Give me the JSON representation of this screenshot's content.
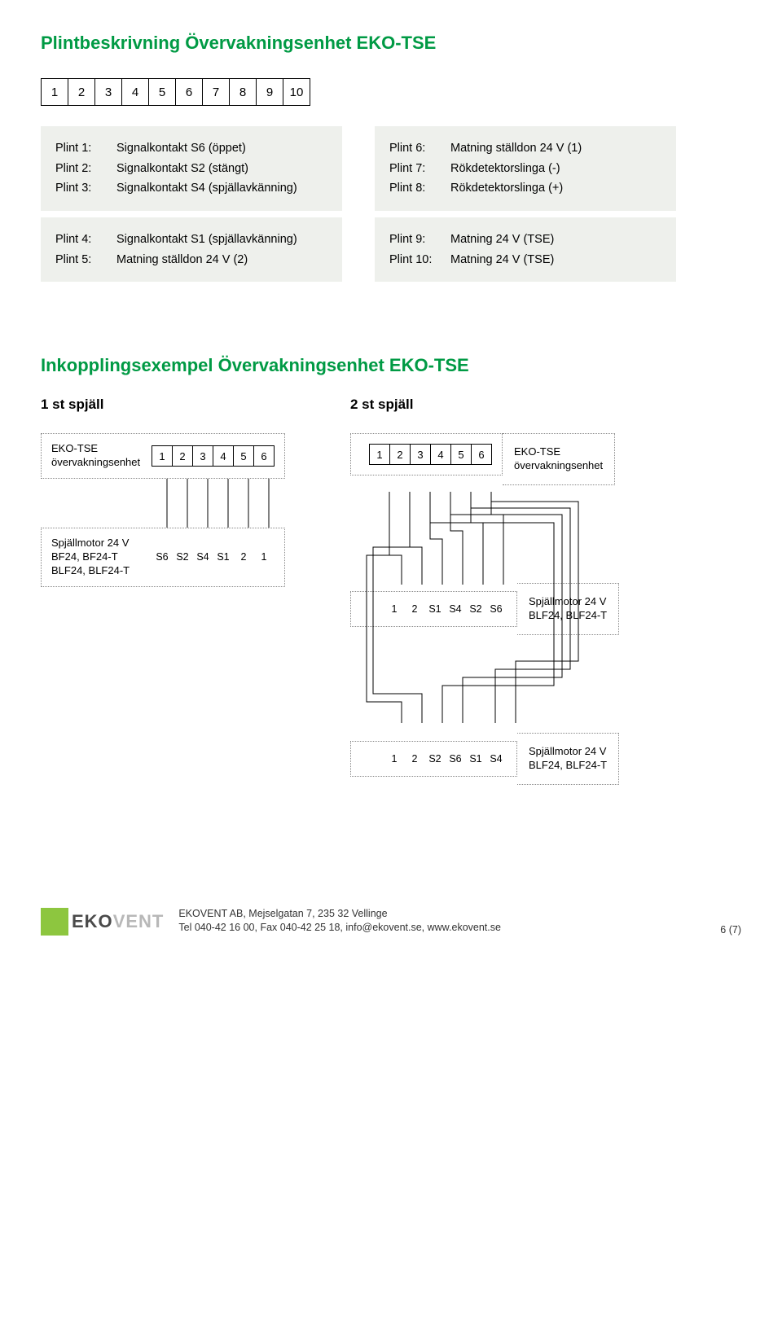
{
  "colors": {
    "accent": "#009a44",
    "box_bg": "#eef0ec",
    "logo_green": "#8dc63f",
    "logo_dark": "#4a4a4a",
    "logo_light": "#b8b8b8",
    "dotted": "#888888",
    "text": "#000000"
  },
  "heading1": "Plintbeskrivning Övervakningsenhet EKO-TSE",
  "terminal_numbers": [
    "1",
    "2",
    "3",
    "4",
    "5",
    "6",
    "7",
    "8",
    "9",
    "10"
  ],
  "plint_left_a": [
    {
      "k": "Plint 1:",
      "v": "Signalkontakt S6 (öppet)"
    },
    {
      "k": "Plint 2:",
      "v": "Signalkontakt S2 (stängt)"
    },
    {
      "k": "Plint 3:",
      "v": "Signalkontakt S4 (spjällavkänning)"
    }
  ],
  "plint_left_b": [
    {
      "k": "Plint 4:",
      "v": "Signalkontakt S1 (spjällavkänning)"
    },
    {
      "k": "Plint 5:",
      "v": "Matning ställdon 24 V (2)"
    }
  ],
  "plint_right_a": [
    {
      "k": "Plint 6:",
      "v": "Matning ställdon 24 V (1)"
    },
    {
      "k": "Plint 7:",
      "v": "Rökdetektorslinga (-)"
    },
    {
      "k": "Plint 8:",
      "v": "Rökdetektorslinga (+)"
    }
  ],
  "plint_right_b": [
    {
      "k": "Plint 9:",
      "v": "Matning 24 V (TSE)"
    },
    {
      "k": "Plint 10:",
      "v": "Matning 24 V (TSE)"
    }
  ],
  "heading2": "Inkopplingsexempel Övervakningsenhet EKO-TSE",
  "sub1": "1 st spjäll",
  "sub2": "2 st spjäll",
  "eko_label": "EKO-TSE\növervakningsenhet",
  "motor_label_a": "Spjällmotor 24 V\nBF24, BF24-T\nBLF24, BLF24-T",
  "motor_label_b": "Spjällmotor 24 V\nBLF24, BLF24-T",
  "term6": [
    "1",
    "2",
    "3",
    "4",
    "5",
    "6"
  ],
  "pins_1st": [
    "S6",
    "S2",
    "S4",
    "S1",
    "2",
    "1"
  ],
  "pins_2a": [
    "1",
    "2",
    "S1",
    "S4",
    "S2",
    "S6"
  ],
  "pins_2b": [
    "1",
    "2",
    "S2",
    "S6",
    "S1",
    "S4"
  ],
  "footer": {
    "logo_text_dark": "EKO",
    "logo_text_light": "VENT",
    "line1": "EKOVENT AB, Mejselgatan 7, 235 32 Vellinge",
    "line2": "Tel 040-42 16 00, Fax 040-42 25 18, info@ekovent.se, www.ekovent.se",
    "page": "6 (7)"
  }
}
